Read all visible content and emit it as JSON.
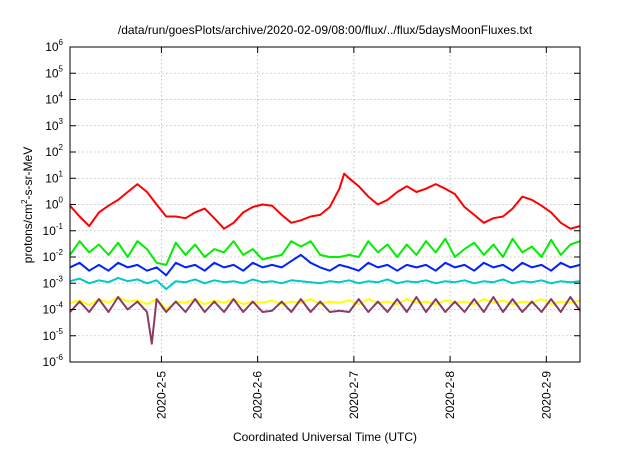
{
  "chart_data": {
    "type": "line",
    "title": "/data/run/goesPlots/archive/2020-02-09/08:00/flux/../flux/5daysMoonFluxes.txt",
    "xlabel": "Coordinated Universal Time (UTC)",
    "ylabel": {
      "pre": "protons/cm",
      "sup": "2",
      "post": "-s-sr-MeV"
    },
    "yscale": "log",
    "ylim": [
      1e-06,
      1000000.0
    ],
    "xlim": [
      4.05,
      9.35
    ],
    "grid": true,
    "x_ticks": [
      {
        "value": 5,
        "label": "2020-2-5"
      },
      {
        "value": 6,
        "label": "2020-2-6"
      },
      {
        "value": 7,
        "label": "2020-2-7"
      },
      {
        "value": 8,
        "label": "2020-2-8"
      },
      {
        "value": 9,
        "label": "2020-2-9"
      }
    ],
    "y_ticks": [
      {
        "exp": -6,
        "base": "10",
        "sup": "-6"
      },
      {
        "exp": -5,
        "base": "10",
        "sup": "-5"
      },
      {
        "exp": -4,
        "base": "10",
        "sup": "-4"
      },
      {
        "exp": -3,
        "base": "10",
        "sup": "-3"
      },
      {
        "exp": -2,
        "base": "10",
        "sup": "-2"
      },
      {
        "exp": -1,
        "base": "10",
        "sup": "-1"
      },
      {
        "exp": 0,
        "base": "10",
        "sup": "0"
      },
      {
        "exp": 1,
        "base": "10",
        "sup": "1"
      },
      {
        "exp": 2,
        "base": "10",
        "sup": "2"
      },
      {
        "exp": 3,
        "base": "10",
        "sup": "3"
      },
      {
        "exp": 4,
        "base": "10",
        "sup": "4"
      },
      {
        "exp": 5,
        "base": "10",
        "sup": "5"
      },
      {
        "exp": 6,
        "base": "10",
        "sup": "6"
      }
    ],
    "series": [
      {
        "color": "#ff0000",
        "x": [
          4.05,
          4.15,
          4.25,
          4.35,
          4.45,
          4.55,
          4.65,
          4.75,
          4.85,
          4.95,
          5.05,
          5.15,
          5.25,
          5.35,
          5.45,
          5.55,
          5.65,
          5.75,
          5.85,
          5.95,
          6.05,
          6.15,
          6.25,
          6.35,
          6.45,
          6.55,
          6.65,
          6.75,
          6.85,
          6.9,
          6.95,
          7.05,
          7.15,
          7.25,
          7.35,
          7.45,
          7.55,
          7.65,
          7.75,
          7.85,
          7.95,
          8.05,
          8.15,
          8.25,
          8.35,
          8.45,
          8.55,
          8.65,
          8.75,
          8.85,
          8.95,
          9.05,
          9.15,
          9.25,
          9.35
        ],
        "y": [
          0.9,
          0.35,
          0.15,
          0.5,
          0.9,
          1.5,
          3,
          6,
          3,
          1,
          0.35,
          0.35,
          0.3,
          0.5,
          0.7,
          0.3,
          0.12,
          0.2,
          0.5,
          0.8,
          1,
          0.9,
          0.4,
          0.2,
          0.25,
          0.35,
          0.4,
          0.8,
          4,
          15,
          10,
          5,
          2,
          1,
          1.5,
          3,
          5,
          3,
          4,
          6,
          4,
          2.5,
          0.8,
          0.4,
          0.2,
          0.3,
          0.35,
          0.7,
          2,
          1.5,
          0.9,
          0.5,
          0.2,
          0.12,
          0.15
        ]
      },
      {
        "color": "#00ee00",
        "x": [
          4.05,
          4.15,
          4.25,
          4.35,
          4.45,
          4.55,
          4.65,
          4.75,
          4.85,
          4.95,
          5.05,
          5.15,
          5.25,
          5.35,
          5.45,
          5.55,
          5.65,
          5.75,
          5.85,
          5.95,
          6.05,
          6.15,
          6.25,
          6.35,
          6.45,
          6.55,
          6.65,
          6.75,
          6.85,
          6.95,
          7.05,
          7.15,
          7.25,
          7.35,
          7.45,
          7.55,
          7.65,
          7.75,
          7.85,
          7.95,
          8.05,
          8.15,
          8.25,
          8.35,
          8.45,
          8.55,
          8.65,
          8.75,
          8.85,
          8.95,
          9.05,
          9.15,
          9.25,
          9.35
        ],
        "y": [
          0.012,
          0.04,
          0.015,
          0.03,
          0.012,
          0.035,
          0.01,
          0.04,
          0.02,
          0.006,
          0.005,
          0.035,
          0.012,
          0.03,
          0.01,
          0.02,
          0.015,
          0.04,
          0.012,
          0.02,
          0.008,
          0.01,
          0.012,
          0.04,
          0.025,
          0.04,
          0.012,
          0.01,
          0.01,
          0.012,
          0.01,
          0.04,
          0.015,
          0.03,
          0.01,
          0.03,
          0.012,
          0.04,
          0.015,
          0.05,
          0.01,
          0.02,
          0.035,
          0.012,
          0.03,
          0.01,
          0.05,
          0.015,
          0.025,
          0.01,
          0.045,
          0.012,
          0.03,
          0.04
        ]
      },
      {
        "color": "#0022ff",
        "x": [
          4.05,
          4.15,
          4.25,
          4.35,
          4.45,
          4.55,
          4.65,
          4.75,
          4.85,
          4.95,
          5.05,
          5.15,
          5.25,
          5.35,
          5.45,
          5.55,
          5.65,
          5.75,
          5.85,
          5.95,
          6.05,
          6.15,
          6.25,
          6.35,
          6.45,
          6.55,
          6.65,
          6.75,
          6.85,
          6.95,
          7.05,
          7.15,
          7.25,
          7.35,
          7.45,
          7.55,
          7.65,
          7.75,
          7.85,
          7.95,
          8.05,
          8.15,
          8.25,
          8.35,
          8.45,
          8.55,
          8.65,
          8.75,
          8.85,
          8.95,
          9.05,
          9.15,
          9.25,
          9.35
        ],
        "y": [
          0.004,
          0.006,
          0.003,
          0.005,
          0.003,
          0.006,
          0.004,
          0.005,
          0.003,
          0.004,
          0.002,
          0.006,
          0.004,
          0.005,
          0.003,
          0.006,
          0.004,
          0.005,
          0.003,
          0.006,
          0.004,
          0.005,
          0.004,
          0.007,
          0.012,
          0.006,
          0.004,
          0.003,
          0.005,
          0.004,
          0.003,
          0.006,
          0.004,
          0.005,
          0.003,
          0.005,
          0.004,
          0.005,
          0.003,
          0.006,
          0.004,
          0.005,
          0.003,
          0.006,
          0.004,
          0.005,
          0.003,
          0.006,
          0.004,
          0.005,
          0.003,
          0.006,
          0.004,
          0.005
        ]
      },
      {
        "color": "#00c8c8",
        "x": [
          4.05,
          4.15,
          4.25,
          4.35,
          4.45,
          4.55,
          4.65,
          4.75,
          4.85,
          4.95,
          5.05,
          5.15,
          5.25,
          5.35,
          5.45,
          5.55,
          5.65,
          5.75,
          5.85,
          5.95,
          6.05,
          6.15,
          6.25,
          6.35,
          6.45,
          6.55,
          6.65,
          6.75,
          6.85,
          6.95,
          7.05,
          7.15,
          7.25,
          7.35,
          7.45,
          7.55,
          7.65,
          7.75,
          7.85,
          7.95,
          8.05,
          8.15,
          8.25,
          8.35,
          8.45,
          8.55,
          8.65,
          8.75,
          8.85,
          8.95,
          9.05,
          9.15,
          9.25,
          9.35
        ],
        "y": [
          0.0012,
          0.0015,
          0.001,
          0.0013,
          0.0011,
          0.0016,
          0.0012,
          0.0014,
          0.001,
          0.0013,
          0.0006,
          0.0012,
          0.0011,
          0.0014,
          0.001,
          0.0013,
          0.0011,
          0.0012,
          0.001,
          0.0014,
          0.0011,
          0.0012,
          0.001,
          0.0013,
          0.0012,
          0.0011,
          0.001,
          0.0012,
          0.0011,
          0.0013,
          0.001,
          0.0012,
          0.0011,
          0.0014,
          0.001,
          0.0012,
          0.0011,
          0.0013,
          0.001,
          0.0012,
          0.0011,
          0.0013,
          0.001,
          0.0012,
          0.0011,
          0.0014,
          0.001,
          0.0012,
          0.0011,
          0.0013,
          0.001,
          0.0012,
          0.0011,
          0.0012
        ]
      },
      {
        "color": "#ffff00",
        "x": [
          4.05,
          4.15,
          4.25,
          4.35,
          4.45,
          4.55,
          4.65,
          4.75,
          4.85,
          4.95,
          5.05,
          5.15,
          5.25,
          5.35,
          5.45,
          5.55,
          5.65,
          5.75,
          5.85,
          5.95,
          6.05,
          6.15,
          6.25,
          6.35,
          6.45,
          6.55,
          6.65,
          6.75,
          6.85,
          6.95,
          7.05,
          7.15,
          7.25,
          7.35,
          7.45,
          7.55,
          7.65,
          7.75,
          7.85,
          7.95,
          8.05,
          8.15,
          8.25,
          8.35,
          8.45,
          8.55,
          8.65,
          8.75,
          8.85,
          8.95,
          9.05,
          9.15,
          9.25,
          9.35
        ],
        "y": [
          0.00018,
          0.00022,
          0.00015,
          0.00025,
          0.00018,
          0.0003,
          0.0002,
          0.00022,
          0.00016,
          0.00025,
          0.0001,
          0.0002,
          0.00018,
          0.00025,
          0.00016,
          0.00022,
          0.00018,
          0.00025,
          0.00016,
          0.0002,
          0.00018,
          0.00022,
          0.00016,
          0.0002,
          0.00018,
          0.00025,
          0.00016,
          0.0002,
          0.00018,
          0.00022,
          0.00016,
          0.00025,
          0.00018,
          0.0002,
          0.00016,
          0.00025,
          0.00018,
          0.0002,
          0.00016,
          0.00022,
          0.00018,
          0.0002,
          0.00016,
          0.00025,
          0.00018,
          0.00022,
          0.00016,
          0.0002,
          0.00018,
          0.00025,
          0.00016,
          0.0002,
          0.00018,
          0.00022
        ]
      },
      {
        "color": "#8b3a62",
        "x": [
          4.05,
          4.15,
          4.25,
          4.35,
          4.45,
          4.55,
          4.65,
          4.75,
          4.85,
          4.9,
          4.95,
          5.05,
          5.15,
          5.25,
          5.35,
          5.45,
          5.55,
          5.65,
          5.75,
          5.85,
          5.95,
          6.05,
          6.15,
          6.25,
          6.35,
          6.45,
          6.55,
          6.65,
          6.75,
          6.85,
          6.95,
          7.05,
          7.15,
          7.25,
          7.35,
          7.45,
          7.55,
          7.65,
          7.75,
          7.85,
          7.95,
          8.05,
          8.15,
          8.25,
          8.35,
          8.45,
          8.55,
          8.65,
          8.75,
          8.85,
          8.95,
          9.05,
          9.15,
          9.25,
          9.35
        ],
        "y": [
          8e-05,
          0.0002,
          8e-05,
          0.00025,
          8e-05,
          0.0003,
          0.0001,
          0.0002,
          8e-05,
          5e-06,
          0.00025,
          8e-05,
          0.0002,
          8e-05,
          0.00025,
          8e-05,
          0.0002,
          8e-05,
          0.00025,
          8e-05,
          0.0002,
          8e-05,
          9e-05,
          0.0002,
          8e-05,
          0.00025,
          8e-05,
          0.0002,
          8e-05,
          9e-05,
          8e-05,
          0.00025,
          8e-05,
          0.0002,
          8e-05,
          0.00025,
          8e-05,
          0.0003,
          8e-05,
          0.00025,
          8e-05,
          0.0002,
          8e-05,
          0.00025,
          8e-05,
          0.0003,
          8e-05,
          0.00025,
          8e-05,
          0.0002,
          8e-05,
          0.00025,
          8e-05,
          0.0003,
          9e-05
        ]
      }
    ]
  }
}
